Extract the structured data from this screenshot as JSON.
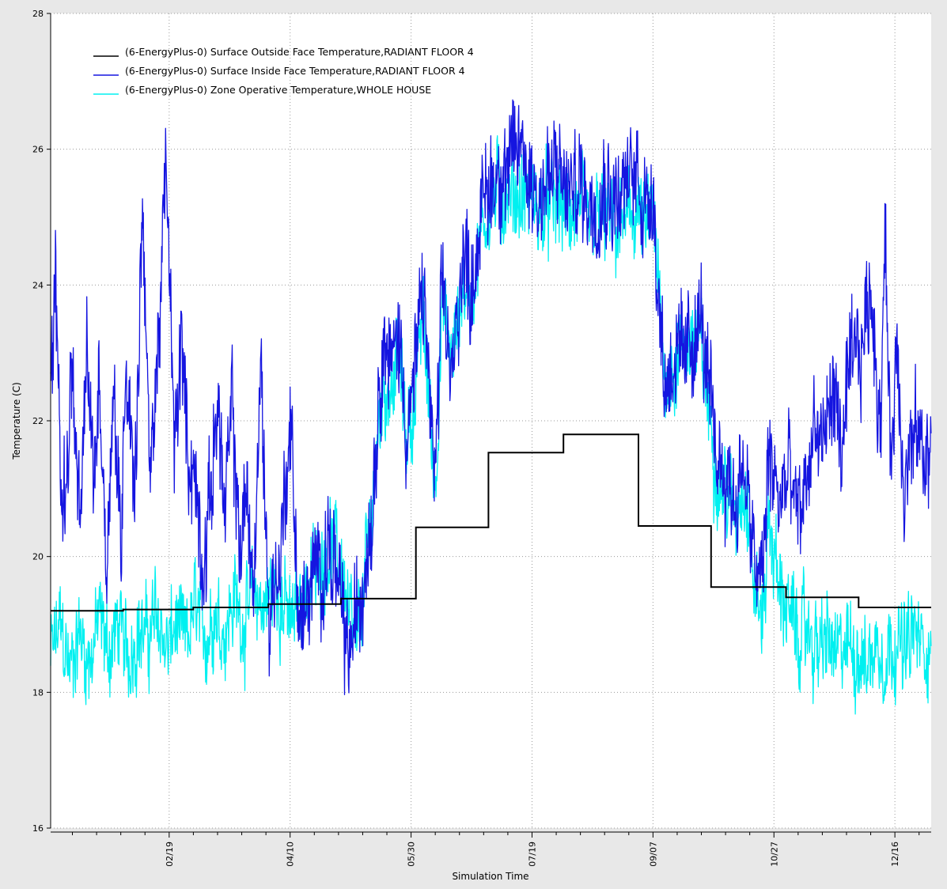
{
  "chart_data": {
    "type": "line",
    "title": "",
    "xlabel": "Simulation Time",
    "ylabel": "Temperature (C)",
    "ylim": [
      16,
      28
    ],
    "yticks": [
      16,
      18,
      20,
      22,
      24,
      26,
      28
    ],
    "xlim": [
      1,
      365
    ],
    "x_unit": "day of year",
    "xtick_labels": [
      "02/19",
      "04/10",
      "05/30",
      "07/19",
      "09/07",
      "10/27",
      "12/16"
    ],
    "xtick_days": [
      50,
      100,
      150,
      200,
      250,
      300,
      350
    ],
    "grid": true,
    "legend_position": "top-left",
    "series": [
      {
        "name": "(6-EnergyPlus-0) Surface Outside Face Temperature,RADIANT FLOOR 4",
        "color": "#000000",
        "style": "step",
        "steps": [
          [
            1,
            19.2
          ],
          [
            31,
            19.22
          ],
          [
            60,
            19.25
          ],
          [
            91,
            19.3
          ],
          [
            121,
            19.38
          ],
          [
            152,
            20.43
          ],
          [
            182,
            21.53
          ],
          [
            213,
            21.8
          ],
          [
            244,
            20.45
          ],
          [
            274,
            19.55
          ],
          [
            305,
            19.4
          ],
          [
            335,
            19.25
          ],
          [
            365,
            19.25
          ]
        ]
      },
      {
        "name": "(6-EnergyPlus-0) Surface Inside Face Temperature,RADIANT FLOOR 4",
        "color": "#1515e0",
        "style": "line",
        "points": [
          [
            1,
            22.0
          ],
          [
            3,
            24.1
          ],
          [
            6,
            20.5
          ],
          [
            10,
            22.8
          ],
          [
            13,
            20.2
          ],
          [
            16,
            23.0
          ],
          [
            19,
            21.0
          ],
          [
            21,
            22.8
          ],
          [
            24,
            20.0
          ],
          [
            27,
            22.5
          ],
          [
            30,
            20.1
          ],
          [
            32,
            23.0
          ],
          [
            36,
            21.0
          ],
          [
            39,
            25.4
          ],
          [
            42,
            21.0
          ],
          [
            46,
            23.5
          ],
          [
            49,
            25.8
          ],
          [
            52,
            21.5
          ],
          [
            55,
            23.2
          ],
          [
            58,
            21.5
          ],
          [
            61,
            21.0
          ],
          [
            64,
            19.8
          ],
          [
            67,
            20.8
          ],
          [
            70,
            22.5
          ],
          [
            73,
            20.5
          ],
          [
            76,
            22.2
          ],
          [
            79,
            20.1
          ],
          [
            82,
            21.0
          ],
          [
            85,
            19.5
          ],
          [
            88,
            22.8
          ],
          [
            91,
            19.2
          ],
          [
            93,
            19.5
          ],
          [
            96,
            20.0
          ],
          [
            100,
            22.0
          ],
          [
            104,
            18.9
          ],
          [
            108,
            19.5
          ],
          [
            112,
            19.8
          ],
          [
            116,
            20.2
          ],
          [
            120,
            19.5
          ],
          [
            124,
            18.5
          ],
          [
            127,
            19.0
          ],
          [
            130,
            19.6
          ],
          [
            134,
            20.8
          ],
          [
            138,
            23.2
          ],
          [
            142,
            22.8
          ],
          [
            145,
            23.3
          ],
          [
            148,
            22.0
          ],
          [
            151,
            22.4
          ],
          [
            155,
            24.0
          ],
          [
            160,
            21.0
          ],
          [
            163,
            24.0
          ],
          [
            167,
            22.5
          ],
          [
            171,
            24.5
          ],
          [
            175,
            24.0
          ],
          [
            180,
            25.3
          ],
          [
            186,
            25.7
          ],
          [
            190,
            25.6
          ],
          [
            195,
            26.1
          ],
          [
            200,
            25.5
          ],
          [
            205,
            25.4
          ],
          [
            210,
            25.7
          ],
          [
            215,
            25.3
          ],
          [
            220,
            25.5
          ],
          [
            225,
            25.2
          ],
          [
            230,
            25.5
          ],
          [
            235,
            25.3
          ],
          [
            240,
            25.5
          ],
          [
            244,
            25.7
          ],
          [
            246,
            25.2
          ],
          [
            250,
            25.5
          ],
          [
            252,
            24.0
          ],
          [
            255,
            22.5
          ],
          [
            258,
            23.0
          ],
          [
            262,
            22.8
          ],
          [
            266,
            23.2
          ],
          [
            270,
            23.5
          ],
          [
            273,
            22.4
          ],
          [
            276,
            21.5
          ],
          [
            280,
            21.3
          ],
          [
            284,
            20.8
          ],
          [
            288,
            21.4
          ],
          [
            291,
            20.0
          ],
          [
            295,
            19.6
          ],
          [
            298,
            21.5
          ],
          [
            302,
            20.8
          ],
          [
            306,
            21.2
          ],
          [
            310,
            20.5
          ],
          [
            313,
            21.0
          ],
          [
            317,
            22.0
          ],
          [
            320,
            21.5
          ],
          [
            324,
            22.5
          ],
          [
            328,
            21.6
          ],
          [
            332,
            22.8
          ],
          [
            336,
            23.0
          ],
          [
            340,
            24.0
          ],
          [
            344,
            22.0
          ],
          [
            346,
            24.8
          ],
          [
            348,
            21.5
          ],
          [
            351,
            23.0
          ],
          [
            354,
            21.0
          ],
          [
            357,
            21.6
          ],
          [
            360,
            21.8
          ],
          [
            362,
            21.3
          ],
          [
            365,
            21.7
          ]
        ]
      },
      {
        "name": "(6-EnergyPlus-0) Zone Operative Temperature,WHOLE HOUSE",
        "color": "#00f0f0",
        "style": "line",
        "points": [
          [
            1,
            18.5
          ],
          [
            5,
            19.0
          ],
          [
            9,
            18.3
          ],
          [
            13,
            18.9
          ],
          [
            17,
            18.4
          ],
          [
            21,
            19.1
          ],
          [
            25,
            18.6
          ],
          [
            29,
            19.0
          ],
          [
            33,
            18.5
          ],
          [
            37,
            18.9
          ],
          [
            41,
            18.8
          ],
          [
            45,
            19.2
          ],
          [
            49,
            18.6
          ],
          [
            53,
            19.0
          ],
          [
            57,
            18.7
          ],
          [
            61,
            19.3
          ],
          [
            65,
            18.8
          ],
          [
            69,
            19.2
          ],
          [
            73,
            18.9
          ],
          [
            77,
            19.4
          ],
          [
            81,
            19.0
          ],
          [
            85,
            19.5
          ],
          [
            89,
            19.2
          ],
          [
            93,
            19.6
          ],
          [
            97,
            19.3
          ],
          [
            101,
            19.0
          ],
          [
            105,
            19.5
          ],
          [
            109,
            19.6
          ],
          [
            113,
            20.0
          ],
          [
            117,
            20.2
          ],
          [
            121,
            19.9
          ],
          [
            124,
            19.2
          ],
          [
            127,
            18.6
          ],
          [
            130,
            19.4
          ],
          [
            134,
            20.8
          ],
          [
            138,
            22.5
          ],
          [
            142,
            22.5
          ],
          [
            145,
            23.0
          ],
          [
            148,
            21.8
          ],
          [
            151,
            22.2
          ],
          [
            155,
            23.6
          ],
          [
            160,
            21.0
          ],
          [
            163,
            23.8
          ],
          [
            167,
            22.8
          ],
          [
            171,
            24.0
          ],
          [
            175,
            23.8
          ],
          [
            180,
            25.0
          ],
          [
            186,
            25.4
          ],
          [
            190,
            25.2
          ],
          [
            195,
            25.3
          ],
          [
            200,
            25.2
          ],
          [
            205,
            25.1
          ],
          [
            210,
            25.2
          ],
          [
            215,
            25.0
          ],
          [
            220,
            25.1
          ],
          [
            225,
            24.9
          ],
          [
            230,
            25.0
          ],
          [
            235,
            24.8
          ],
          [
            240,
            25.0
          ],
          [
            244,
            25.1
          ],
          [
            246,
            24.7
          ],
          [
            250,
            25.1
          ],
          [
            252,
            24.0
          ],
          [
            255,
            22.7
          ],
          [
            258,
            22.8
          ],
          [
            262,
            23.0
          ],
          [
            266,
            23.3
          ],
          [
            270,
            23.0
          ],
          [
            273,
            22.2
          ],
          [
            276,
            21.3
          ],
          [
            280,
            21.0
          ],
          [
            284,
            20.6
          ],
          [
            288,
            21.2
          ],
          [
            291,
            19.8
          ],
          [
            295,
            19.0
          ],
          [
            298,
            20.5
          ],
          [
            302,
            19.6
          ],
          [
            306,
            19.2
          ],
          [
            310,
            18.8
          ],
          [
            314,
            18.9
          ],
          [
            318,
            18.6
          ],
          [
            322,
            18.8
          ],
          [
            326,
            18.5
          ],
          [
            330,
            18.7
          ],
          [
            334,
            18.6
          ],
          [
            338,
            18.4
          ],
          [
            342,
            18.7
          ],
          [
            346,
            18.5
          ],
          [
            350,
            18.8
          ],
          [
            354,
            18.6
          ],
          [
            358,
            18.9
          ],
          [
            362,
            18.6
          ],
          [
            365,
            18.8
          ]
        ]
      }
    ]
  }
}
